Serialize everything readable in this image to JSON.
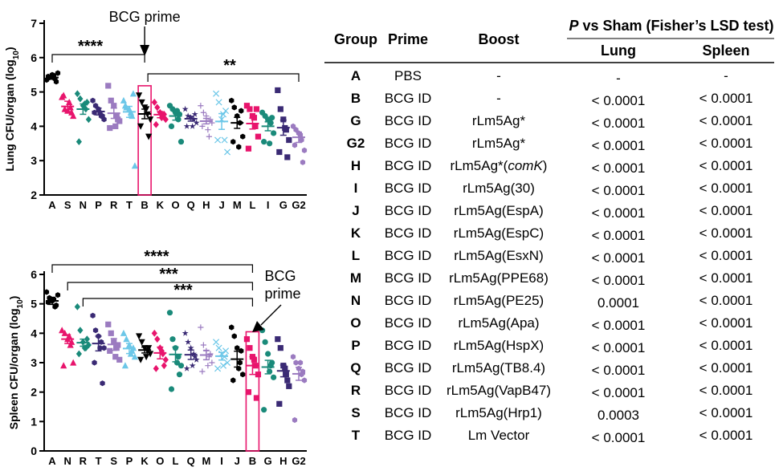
{
  "chart_data": [
    {
      "type": "scatter",
      "ylabel_main": "Lung CFU/organ (log",
      "ylabel_sub": "10",
      "ylabel_end": ")",
      "ylim": [
        2,
        7
      ],
      "yticks": [
        "2",
        "3",
        "4",
        "5",
        "6",
        "7"
      ],
      "categories": [
        "A",
        "S",
        "N",
        "P",
        "R",
        "T",
        "B",
        "K",
        "O",
        "Q",
        "H",
        "J",
        "M",
        "L",
        "I",
        "G",
        "G2"
      ],
      "colors": [
        "#000000",
        "#e8146c",
        "#1a8a7a",
        "#3a2a74",
        "#9b7bc0",
        "#6cc7e8",
        "#000000",
        "#e8146c",
        "#1a8a7a",
        "#3a2a74",
        "#9b7bc0",
        "#6cc7e8",
        "#000000",
        "#e8146c",
        "#1a8a7a",
        "#3a2a74",
        "#9b7bc0"
      ],
      "markers": [
        "hexagon",
        "triangle",
        "diamond",
        "hexagon",
        "square",
        "triangle",
        "triangle-down",
        "diamond",
        "circle",
        "star",
        "plus",
        "cross",
        "hexagon",
        "square",
        "circle",
        "square",
        "hexagon"
      ],
      "means": [
        5.42,
        4.58,
        4.5,
        4.43,
        4.38,
        4.42,
        4.36,
        4.34,
        4.3,
        4.22,
        4.15,
        4.14,
        4.1,
        4.08,
        4.0,
        3.96,
        3.68
      ],
      "sems": [
        0.05,
        0.15,
        0.15,
        0.1,
        0.15,
        0.16,
        0.14,
        0.09,
        0.12,
        0.07,
        0.08,
        0.23,
        0.16,
        0.16,
        0.13,
        0.22,
        0.15
      ],
      "points": [
        [
          5.35,
          5.42,
          5.5,
          5.38,
          5.55,
          5.45,
          5.3,
          5.48
        ],
        [
          4.85,
          4.5,
          4.45,
          4.55,
          4.3,
          4.9,
          4.4,
          4.7
        ],
        [
          4.95,
          4.8,
          4.6,
          4.5,
          4.2,
          3.55,
          4.7,
          4.65
        ],
        [
          4.75,
          4.6,
          4.5,
          4.3,
          4.2,
          4.4,
          4.3,
          4.4
        ],
        [
          5.18,
          4.75,
          4.6,
          4.3,
          4.15,
          3.95,
          4.2,
          4.0
        ],
        [
          4.75,
          4.55,
          4.5,
          4.3,
          2.85,
          4.6,
          4.95,
          4.4
        ],
        [
          4.9,
          4.7,
          4.55,
          4.35,
          4.2,
          4.0,
          3.7,
          4.5
        ],
        [
          4.7,
          4.55,
          4.4,
          4.3,
          4.2,
          4.05,
          4.35,
          4.25
        ],
        [
          4.6,
          4.5,
          4.4,
          4.2,
          3.55,
          4.0,
          4.35,
          4.45
        ],
        [
          4.5,
          4.3,
          4.25,
          4.2,
          4.1,
          4.0,
          4.35,
          4.0
        ],
        [
          4.6,
          4.4,
          4.3,
          3.7,
          4.1,
          4.0,
          4.2,
          3.9
        ],
        [
          4.95,
          4.7,
          4.2,
          3.6,
          3.25,
          3.6,
          4.45,
          4.35
        ],
        [
          4.75,
          4.55,
          4.3,
          4.1,
          3.7,
          3.55,
          4.45,
          3.4
        ],
        [
          4.6,
          4.5,
          4.3,
          4.0,
          3.7,
          3.35,
          4.5,
          4.25
        ],
        [
          4.4,
          4.3,
          4.2,
          4.1,
          3.8,
          3.55,
          4.25,
          3.5
        ],
        [
          5.05,
          4.5,
          4.2,
          3.9,
          3.6,
          3.25,
          3.1,
          3.95
        ],
        [
          4.0,
          3.9,
          3.8,
          3.6,
          3.3,
          3.45,
          2.95,
          3.75
        ]
      ],
      "highlight_category": "B",
      "annotation": "BCG prime",
      "significance": [
        {
          "label": "****",
          "from": "A",
          "to": "B"
        },
        {
          "label": "**",
          "from": "B",
          "to": "G2"
        }
      ]
    },
    {
      "type": "scatter",
      "ylabel_main": "Spleen CFU/organ (log",
      "ylabel_sub": "10",
      "ylabel_end": ")",
      "ylim": [
        0,
        6
      ],
      "yticks": [
        "0",
        "1",
        "2",
        "3",
        "4",
        "5",
        "6"
      ],
      "categories": [
        "A",
        "N",
        "R",
        "T",
        "S",
        "P",
        "K",
        "O",
        "L",
        "Q",
        "M",
        "I",
        "J",
        "B",
        "G",
        "H",
        "G2"
      ],
      "colors": [
        "#000000",
        "#e8146c",
        "#1a8a7a",
        "#3a2a74",
        "#9b7bc0",
        "#6cc7e8",
        "#000000",
        "#e8146c",
        "#1a8a7a",
        "#3a2a74",
        "#9b7bc0",
        "#6cc7e8",
        "#000000",
        "#e8146c",
        "#1a8a7a",
        "#3a2a74",
        "#9b7bc0"
      ],
      "markers": [
        "hexagon",
        "triangle",
        "diamond",
        "hexagon",
        "square",
        "triangle",
        "triangle-down",
        "diamond",
        "circle",
        "star",
        "plus",
        "cross",
        "hexagon",
        "square",
        "circle",
        "square",
        "hexagon"
      ],
      "means": [
        5.1,
        3.8,
        3.68,
        3.65,
        3.62,
        3.48,
        3.43,
        3.33,
        3.28,
        3.27,
        3.26,
        3.22,
        3.12,
        2.9,
        2.85,
        2.72,
        2.62
      ],
      "sems": [
        0.12,
        0.15,
        0.12,
        0.25,
        0.2,
        0.17,
        0.1,
        0.2,
        0.25,
        0.16,
        0.16,
        0.13,
        0.27,
        0.3,
        0.23,
        0.2,
        0.22
      ],
      "points": [
        [
          5.4,
          5.2,
          5.1,
          4.9,
          5.3,
          5.05,
          4.95,
          5.15
        ],
        [
          4.1,
          4.0,
          3.8,
          3.6,
          3.0,
          2.9,
          3.7,
          3.9
        ],
        [
          4.9,
          4.1,
          3.7,
          3.5,
          3.6,
          3.3,
          3.8,
          3.5
        ],
        [
          4.6,
          4.1,
          3.9,
          3.7,
          3.5,
          3.0,
          2.3,
          3.5
        ],
        [
          4.3,
          4.0,
          3.7,
          3.5,
          3.1,
          3.4,
          3.6,
          3.2
        ],
        [
          4.0,
          3.8,
          3.6,
          3.4,
          3.2,
          2.9,
          3.5,
          3.3
        ],
        [
          3.9,
          3.7,
          3.5,
          3.4,
          3.3,
          3.1,
          3.5,
          3.2
        ],
        [
          4.0,
          3.8,
          3.5,
          3.3,
          3.1,
          2.8,
          2.9,
          3.4
        ],
        [
          4.7,
          3.8,
          3.5,
          3.2,
          2.9,
          2.1,
          2.6,
          3.0
        ],
        [
          4.0,
          3.7,
          3.5,
          3.3,
          3.1,
          2.8,
          3.2,
          2.9
        ],
        [
          4.2,
          3.6,
          3.4,
          3.2,
          3.0,
          2.7,
          3.3,
          2.9
        ],
        [
          3.7,
          3.5,
          3.3,
          3.2,
          3.0,
          2.8,
          3.4,
          2.9
        ],
        [
          4.2,
          3.9,
          3.5,
          3.0,
          2.6,
          2.4,
          3.4,
          2.8
        ],
        [
          3.8,
          3.5,
          3.2,
          2.9,
          2.6,
          2.0,
          1.8,
          3.1
        ],
        [
          4.1,
          3.7,
          3.3,
          2.9,
          2.5,
          1.4,
          3.0,
          2.7
        ],
        [
          3.8,
          3.5,
          2.9,
          2.6,
          2.2,
          1.6,
          2.4,
          2.8
        ],
        [
          3.2,
          3.0,
          2.8,
          2.6,
          2.4,
          1.05,
          2.7,
          3.0
        ]
      ],
      "highlight_category": "B",
      "annotation_lines": [
        "BCG",
        "prime"
      ],
      "significance": [
        {
          "label": "****",
          "from": "A",
          "to": "B"
        },
        {
          "label": "***",
          "from": "N",
          "to": "B"
        },
        {
          "label": "***",
          "from": "R",
          "to": "B"
        }
      ]
    }
  ],
  "table": {
    "type": "table",
    "header": {
      "group": "Group",
      "prime": "Prime",
      "boost": "Boost",
      "pvs_italic": "P",
      "pvs_rest": " vs Sham (Fisher’s LSD test)",
      "lung": "Lung",
      "spleen": "Spleen"
    },
    "rows": [
      {
        "group": "A",
        "prime": "PBS",
        "boost": "-",
        "lung": "-",
        "spleen": "-"
      },
      {
        "group": "B",
        "prime": "BCG ID",
        "boost": "-",
        "lung": "< 0.0001",
        "spleen": "< 0.0001"
      },
      {
        "group": "G",
        "prime": "BCG ID",
        "boost": "rLm5Ag*",
        "lung": "< 0.0001",
        "spleen": "< 0.0001"
      },
      {
        "group": "G2",
        "prime": "BCG ID",
        "boost": "rLm5Ag*",
        "lung": "< 0.0001",
        "spleen": "< 0.0001"
      },
      {
        "group": "H",
        "prime": "BCG ID",
        "boost": "rLm5Ag*(",
        "boost_italic": "comK",
        "boost_end": ")",
        "lung": "< 0.0001",
        "spleen": "< 0.0001"
      },
      {
        "group": "I",
        "prime": "BCG ID",
        "boost": "rLm5Ag(30)",
        "lung": "< 0.0001",
        "spleen": "< 0.0001"
      },
      {
        "group": "J",
        "prime": "BCG ID",
        "boost": "rLm5Ag(EspA)",
        "lung": "< 0.0001",
        "spleen": "< 0.0001"
      },
      {
        "group": "K",
        "prime": "BCG ID",
        "boost": "rLm5Ag(EspC)",
        "lung": "< 0.0001",
        "spleen": "< 0.0001"
      },
      {
        "group": "L",
        "prime": "BCG ID",
        "boost": "rLm5Ag(EsxN)",
        "lung": "< 0.0001",
        "spleen": "< 0.0001"
      },
      {
        "group": "M",
        "prime": "BCG ID",
        "boost": "rLm5Ag(PPE68)",
        "lung": "< 0.0001",
        "spleen": "< 0.0001"
      },
      {
        "group": "N",
        "prime": "BCG ID",
        "boost": "rLm5Ag(PE25)",
        "lung": "0.0001",
        "spleen": "< 0.0001"
      },
      {
        "group": "O",
        "prime": "BCG ID",
        "boost": "rLm5Ag(Apa)",
        "lung": "< 0.0001",
        "spleen": "< 0.0001"
      },
      {
        "group": "P",
        "prime": "BCG ID",
        "boost": "rLm5Ag(HspX)",
        "lung": "< 0.0001",
        "spleen": "< 0.0001"
      },
      {
        "group": "Q",
        "prime": "BCG ID",
        "boost": "rLm5Ag(TB8.4)",
        "lung": "< 0.0001",
        "spleen": "< 0.0001"
      },
      {
        "group": "R",
        "prime": "BCG ID",
        "boost": "rLm5Ag(VapB47)",
        "lung": "< 0.0001",
        "spleen": "< 0.0001"
      },
      {
        "group": "S",
        "prime": "BCG ID",
        "boost": "rLm5Ag(Hrp1)",
        "lung": "0.0003",
        "spleen": "< 0.0001"
      },
      {
        "group": "T",
        "prime": "BCG ID",
        "boost": "Lm Vector",
        "lung": "< 0.0001",
        "spleen": "< 0.0001"
      }
    ]
  }
}
